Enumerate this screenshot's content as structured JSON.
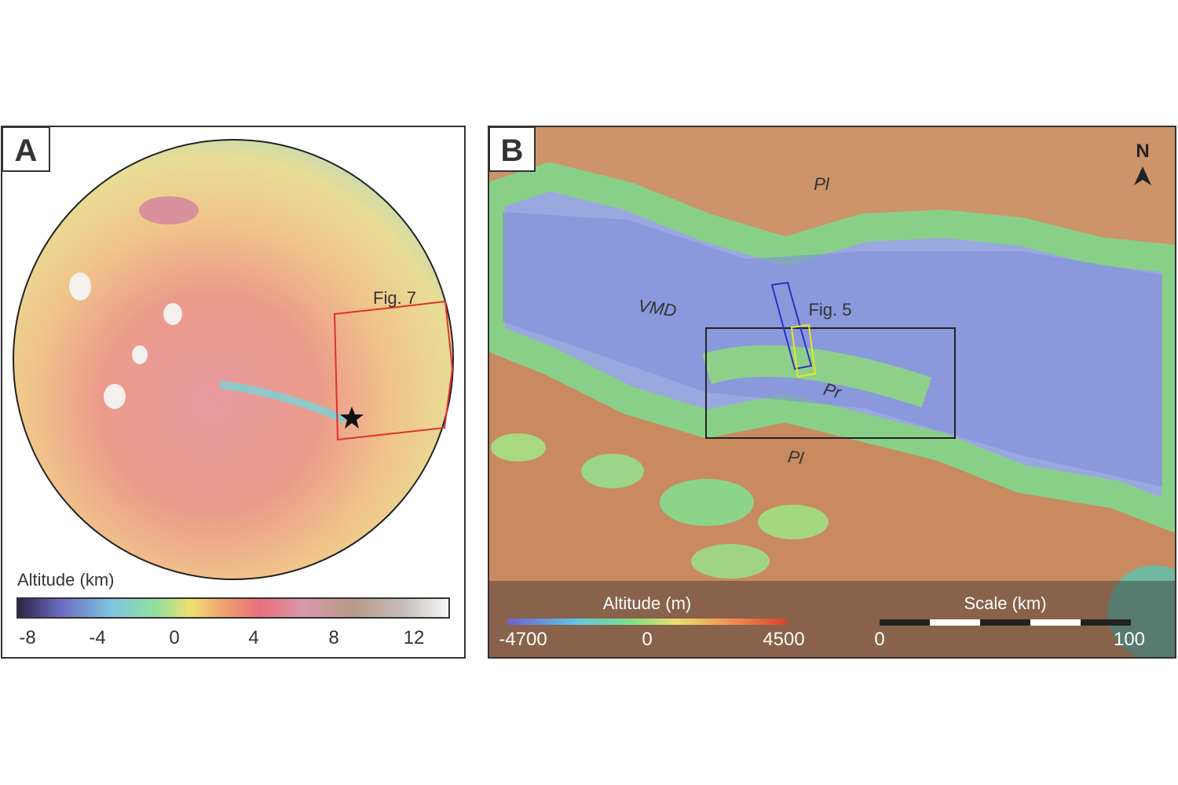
{
  "panel_a": {
    "label": "A",
    "annotation": "Fig. 7",
    "legend": {
      "title": "Altitude (km)",
      "ticks": [
        "-8",
        "-4",
        "0",
        "4",
        "8",
        "12"
      ]
    }
  },
  "panel_b": {
    "label": "B",
    "north": "N",
    "annotations": [
      "Pl",
      "VMD",
      "Fig. 5",
      "Pr",
      "Pl"
    ],
    "legend": {
      "title": "Altitude (m)",
      "ticks": [
        "-4700",
        "0",
        "4500"
      ]
    },
    "scale_bar": {
      "title": "Scale (km)",
      "ticks": [
        "0",
        "100"
      ]
    }
  }
}
